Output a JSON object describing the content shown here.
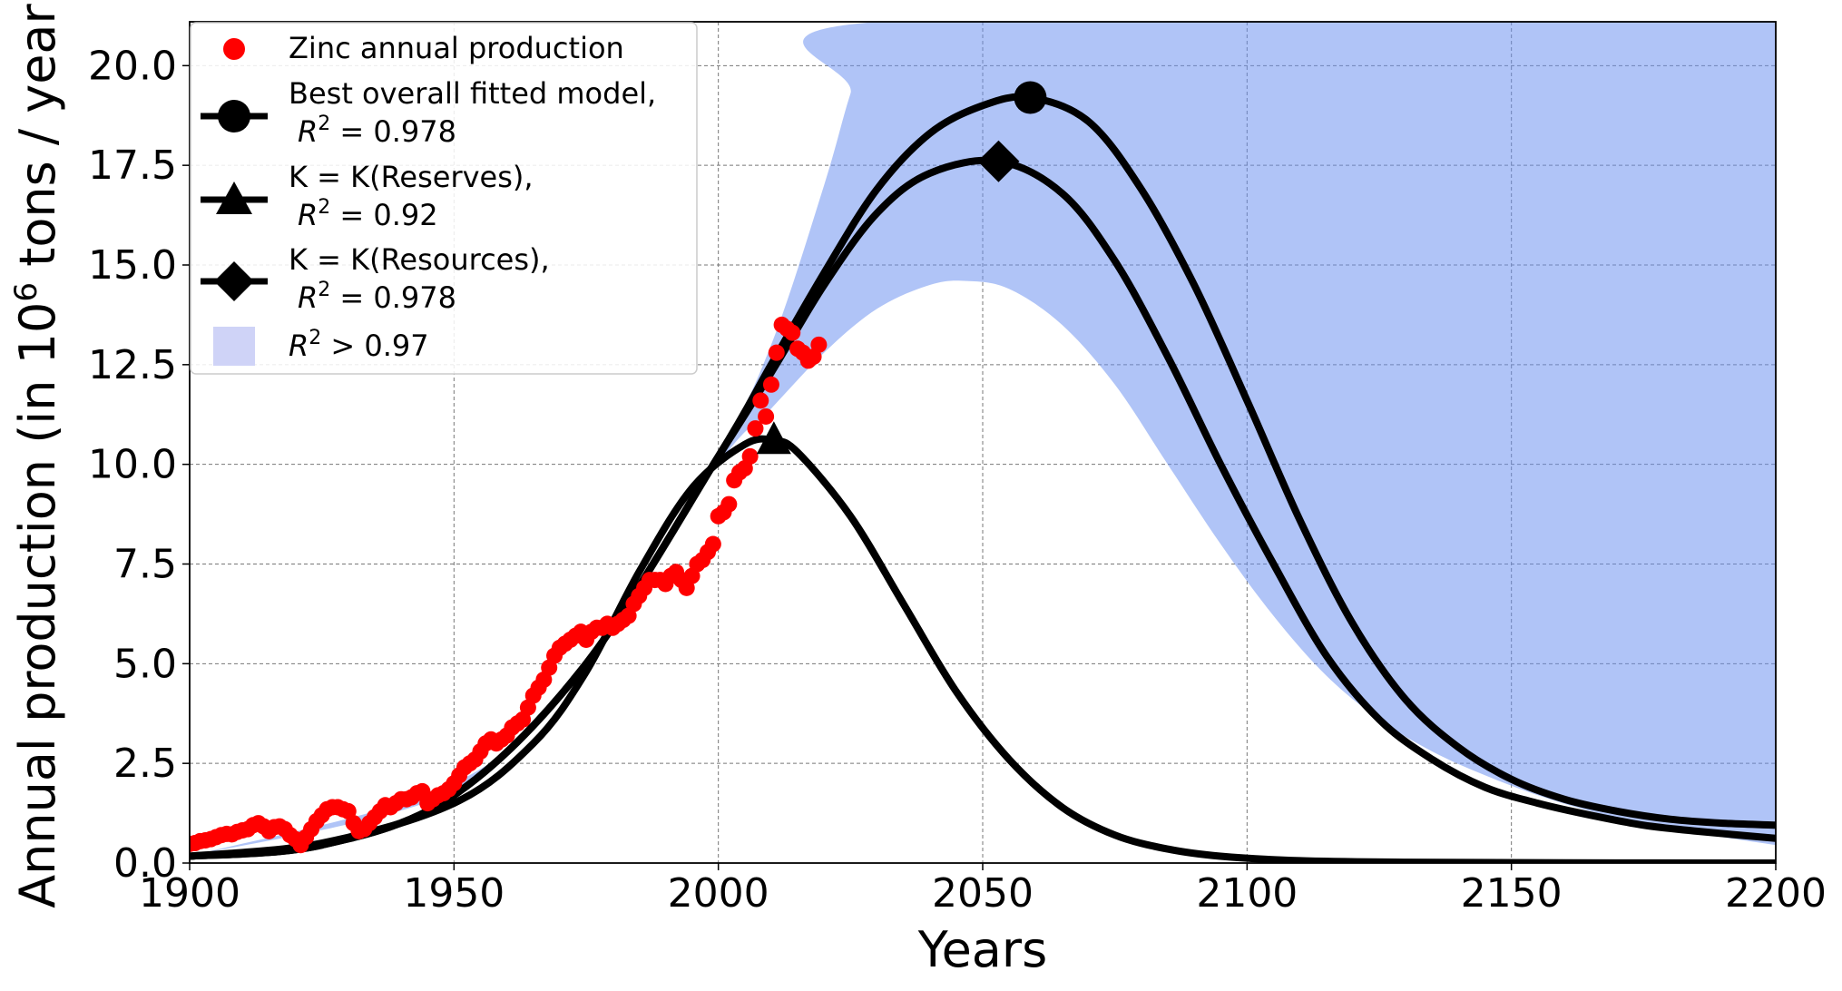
{
  "chart_data": {
    "type": "line",
    "title": "",
    "xlabel": "Years",
    "ylabel_prefix": "Annual production (in 10",
    "ylabel_sup": "6",
    "ylabel_suffix": " tons / year)",
    "xlim": [
      1900,
      2200
    ],
    "ylim": [
      0,
      21.1
    ],
    "x_ticks": [
      1900,
      1950,
      2000,
      2050,
      2100,
      2150,
      2200
    ],
    "x_tick_labels": [
      "1900",
      "1950",
      "2000",
      "2050",
      "2100",
      "2150",
      "2200"
    ],
    "y_ticks": [
      0,
      2.5,
      5,
      7.5,
      10,
      12.5,
      15,
      17.5,
      20
    ],
    "y_tick_labels": [
      "0.0",
      "2.5",
      "5.0",
      "7.5",
      "10.0",
      "12.5",
      "15.0",
      "17.5",
      "20.0"
    ],
    "grid": true,
    "legend": {
      "placement": "top-left",
      "entries": [
        {
          "id": "data",
          "marker": "red-dot",
          "lines": [
            "Zinc annual production"
          ]
        },
        {
          "id": "best",
          "marker": "circle",
          "lines": [
            "Best overall fitted model,",
            "R^2 = 0.978"
          ]
        },
        {
          "id": "reserves",
          "marker": "triangle",
          "lines": [
            "K = K(Reserves),",
            "R^2 = 0.92"
          ]
        },
        {
          "id": "resources",
          "marker": "diamond",
          "lines": [
            "K = K(Resources),",
            "R^2 = 0.978"
          ]
        },
        {
          "id": "band",
          "marker": "patch",
          "lines": [
            "R^2 > 0.97"
          ]
        }
      ]
    },
    "series": [
      {
        "name": "Best overall fitted model",
        "kind": "curve",
        "color": "#000000",
        "peak_marker": "circle",
        "peak": {
          "x": 2059,
          "y": 19.2
        },
        "points": [
          [
            1900,
            0.17
          ],
          [
            1925,
            0.45
          ],
          [
            1950,
            1.7
          ],
          [
            1975,
            5.0
          ],
          [
            2000,
            10.2
          ],
          [
            2010,
            12.5
          ],
          [
            2020,
            14.8
          ],
          [
            2030,
            16.9
          ],
          [
            2040,
            18.3
          ],
          [
            2050,
            19.0
          ],
          [
            2059,
            19.2
          ],
          [
            2070,
            18.6
          ],
          [
            2080,
            16.9
          ],
          [
            2090,
            14.5
          ],
          [
            2100,
            11.6
          ],
          [
            2110,
            8.6
          ],
          [
            2120,
            6.0
          ],
          [
            2130,
            4.1
          ],
          [
            2140,
            2.9
          ],
          [
            2150,
            2.1
          ],
          [
            2160,
            1.6
          ],
          [
            2170,
            1.3
          ],
          [
            2180,
            1.1
          ],
          [
            2190,
            1.0
          ],
          [
            2200,
            0.95
          ]
        ]
      },
      {
        "name": "K = K(Reserves)",
        "kind": "curve",
        "color": "#000000",
        "peak_marker": "triangle",
        "peak": {
          "x": 2010.5,
          "y": 10.6
        },
        "points": [
          [
            1900,
            0.17
          ],
          [
            1925,
            0.5
          ],
          [
            1950,
            1.5
          ],
          [
            1965,
            3.0
          ],
          [
            1975,
            4.8
          ],
          [
            1985,
            7.3
          ],
          [
            1995,
            9.4
          ],
          [
            2005,
            10.5
          ],
          [
            2010.5,
            10.6
          ],
          [
            2015,
            10.3
          ],
          [
            2025,
            8.7
          ],
          [
            2035,
            6.5
          ],
          [
            2045,
            4.3
          ],
          [
            2055,
            2.6
          ],
          [
            2065,
            1.4
          ],
          [
            2075,
            0.7
          ],
          [
            2085,
            0.35
          ],
          [
            2095,
            0.17
          ],
          [
            2110,
            0.06
          ],
          [
            2130,
            0.02
          ],
          [
            2160,
            0.005
          ],
          [
            2200,
            0.0
          ]
        ]
      },
      {
        "name": "K = K(Resources)",
        "kind": "curve",
        "color": "#000000",
        "peak_marker": "diamond",
        "peak": {
          "x": 2053,
          "y": 17.6
        },
        "points": [
          [
            1900,
            0.17
          ],
          [
            1925,
            0.45
          ],
          [
            1950,
            1.7
          ],
          [
            1975,
            5.0
          ],
          [
            2000,
            10.2
          ],
          [
            2010,
            12.3
          ],
          [
            2020,
            14.5
          ],
          [
            2030,
            16.3
          ],
          [
            2040,
            17.3
          ],
          [
            2053,
            17.6
          ],
          [
            2065,
            16.8
          ],
          [
            2075,
            15.1
          ],
          [
            2085,
            12.7
          ],
          [
            2095,
            10.0
          ],
          [
            2105,
            7.5
          ],
          [
            2115,
            5.2
          ],
          [
            2125,
            3.6
          ],
          [
            2135,
            2.6
          ],
          [
            2145,
            1.9
          ],
          [
            2155,
            1.5
          ],
          [
            2165,
            1.2
          ],
          [
            2175,
            0.95
          ],
          [
            2185,
            0.8
          ],
          [
            2200,
            0.62
          ]
        ]
      },
      {
        "name": "R^2 > 0.97",
        "kind": "band",
        "color": "#6a8fef",
        "upper": [
          [
            1900,
            0.17
          ],
          [
            1950,
            2.0
          ],
          [
            1975,
            5.0
          ],
          [
            2000,
            10.3
          ],
          [
            2010,
            13.0
          ],
          [
            2020,
            17.0
          ],
          [
            2025,
            19.3
          ],
          [
            2030,
            21.1
          ],
          [
            2200,
            21.1
          ]
        ],
        "lower": [
          [
            1900,
            0.17
          ],
          [
            1950,
            1.8
          ],
          [
            1975,
            5.0
          ],
          [
            2000,
            10.0
          ],
          [
            2010,
            11.4
          ],
          [
            2020,
            12.8
          ],
          [
            2030,
            13.9
          ],
          [
            2040,
            14.5
          ],
          [
            2047,
            14.6
          ],
          [
            2055,
            14.4
          ],
          [
            2065,
            13.5
          ],
          [
            2075,
            12.0
          ],
          [
            2085,
            10.0
          ],
          [
            2095,
            8.0
          ],
          [
            2105,
            6.2
          ],
          [
            2115,
            4.7
          ],
          [
            2125,
            3.6
          ],
          [
            2135,
            2.8
          ],
          [
            2145,
            2.2
          ],
          [
            2155,
            1.7
          ],
          [
            2165,
            1.3
          ],
          [
            2175,
            1.0
          ],
          [
            2185,
            0.75
          ],
          [
            2200,
            0.45
          ]
        ]
      },
      {
        "name": "Zinc annual production",
        "kind": "scatter",
        "color": "#ff0000",
        "points": [
          [
            1900,
            0.48
          ],
          [
            1901,
            0.5
          ],
          [
            1902,
            0.55
          ],
          [
            1903,
            0.57
          ],
          [
            1904,
            0.6
          ],
          [
            1905,
            0.65
          ],
          [
            1906,
            0.7
          ],
          [
            1907,
            0.73
          ],
          [
            1908,
            0.72
          ],
          [
            1909,
            0.78
          ],
          [
            1910,
            0.82
          ],
          [
            1911,
            0.85
          ],
          [
            1912,
            0.95
          ],
          [
            1913,
            1.0
          ],
          [
            1914,
            0.92
          ],
          [
            1915,
            0.8
          ],
          [
            1916,
            0.9
          ],
          [
            1917,
            0.92
          ],
          [
            1918,
            0.85
          ],
          [
            1919,
            0.7
          ],
          [
            1920,
            0.6
          ],
          [
            1921,
            0.45
          ],
          [
            1922,
            0.65
          ],
          [
            1923,
            0.85
          ],
          [
            1924,
            1.05
          ],
          [
            1925,
            1.2
          ],
          [
            1926,
            1.35
          ],
          [
            1927,
            1.4
          ],
          [
            1928,
            1.4
          ],
          [
            1929,
            1.35
          ],
          [
            1930,
            1.3
          ],
          [
            1931,
            1.0
          ],
          [
            1932,
            0.8
          ],
          [
            1933,
            0.85
          ],
          [
            1934,
            1.0
          ],
          [
            1935,
            1.15
          ],
          [
            1936,
            1.3
          ],
          [
            1937,
            1.45
          ],
          [
            1938,
            1.4
          ],
          [
            1939,
            1.5
          ],
          [
            1940,
            1.6
          ],
          [
            1941,
            1.6
          ],
          [
            1942,
            1.65
          ],
          [
            1943,
            1.75
          ],
          [
            1944,
            1.8
          ],
          [
            1945,
            1.5
          ],
          [
            1946,
            1.6
          ],
          [
            1947,
            1.7
          ],
          [
            1948,
            1.75
          ],
          [
            1949,
            1.85
          ],
          [
            1950,
            2.0
          ],
          [
            1951,
            2.2
          ],
          [
            1952,
            2.4
          ],
          [
            1953,
            2.5
          ],
          [
            1954,
            2.6
          ],
          [
            1955,
            2.8
          ],
          [
            1956,
            3.0
          ],
          [
            1957,
            3.1
          ],
          [
            1958,
            3.0
          ],
          [
            1959,
            3.1
          ],
          [
            1960,
            3.2
          ],
          [
            1961,
            3.4
          ],
          [
            1962,
            3.5
          ],
          [
            1963,
            3.6
          ],
          [
            1964,
            3.9
          ],
          [
            1965,
            4.2
          ],
          [
            1966,
            4.4
          ],
          [
            1967,
            4.6
          ],
          [
            1968,
            4.9
          ],
          [
            1969,
            5.2
          ],
          [
            1970,
            5.4
          ],
          [
            1971,
            5.5
          ],
          [
            1972,
            5.6
          ],
          [
            1973,
            5.7
          ],
          [
            1974,
            5.8
          ],
          [
            1975,
            5.6
          ],
          [
            1976,
            5.8
          ],
          [
            1977,
            5.9
          ],
          [
            1978,
            5.9
          ],
          [
            1979,
            6.0
          ],
          [
            1980,
            5.9
          ],
          [
            1981,
            6.0
          ],
          [
            1982,
            6.1
          ],
          [
            1983,
            6.2
          ],
          [
            1984,
            6.5
          ],
          [
            1985,
            6.7
          ],
          [
            1986,
            6.9
          ],
          [
            1987,
            7.1
          ],
          [
            1988,
            7.1
          ],
          [
            1989,
            7.1
          ],
          [
            1990,
            7.0
          ],
          [
            1991,
            7.2
          ],
          [
            1992,
            7.3
          ],
          [
            1993,
            7.1
          ],
          [
            1994,
            6.9
          ],
          [
            1995,
            7.2
          ],
          [
            1996,
            7.5
          ],
          [
            1997,
            7.6
          ],
          [
            1998,
            7.8
          ],
          [
            1999,
            8.0
          ],
          [
            2000,
            8.7
          ],
          [
            2001,
            8.8
          ],
          [
            2002,
            9.0
          ],
          [
            2003,
            9.6
          ],
          [
            2004,
            9.8
          ],
          [
            2005,
            9.9
          ],
          [
            2006,
            10.2
          ],
          [
            2007,
            10.9
          ],
          [
            2008,
            11.6
          ],
          [
            2009,
            11.2
          ],
          [
            2010,
            12.0
          ],
          [
            2011,
            12.8
          ],
          [
            2012,
            13.5
          ],
          [
            2013,
            13.4
          ],
          [
            2014,
            13.3
          ],
          [
            2015,
            12.9
          ],
          [
            2016,
            12.8
          ],
          [
            2017,
            12.6
          ],
          [
            2018,
            12.7
          ],
          [
            2019,
            13.0
          ]
        ]
      }
    ]
  }
}
